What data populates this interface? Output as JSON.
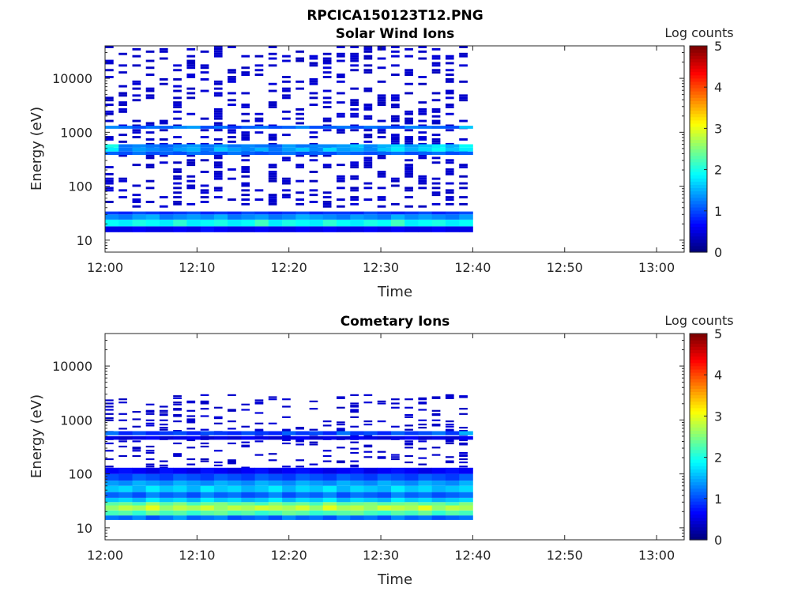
{
  "figure_title": "RPCICA150123T12.PNG",
  "colorbar": {
    "label": "Log counts",
    "ticks": [
      "0",
      "1",
      "2",
      "3",
      "4",
      "5"
    ],
    "range": [
      0,
      5
    ],
    "colormap": "jet"
  },
  "chart_data": [
    {
      "type": "heatmap",
      "title": "Solar Wind Ions",
      "xlabel": "Time",
      "ylabel": "Energy (eV)",
      "x_ticks": [
        "12:00",
        "12:10",
        "12:20",
        "12:30",
        "12:40",
        "12:50",
        "13:00"
      ],
      "y_ticks": [
        "10",
        "100",
        "1000",
        "10000"
      ],
      "y_scale": "log",
      "ylim": [
        6,
        40000
      ],
      "xlim": [
        "12:00",
        "13:03"
      ],
      "data_extent": [
        "12:00",
        "12:40"
      ],
      "bands": [
        {
          "energy_low": 14,
          "energy_high": 18,
          "values": [
            0.5,
            0.5,
            0.6,
            0.5,
            0.5,
            0.6,
            0.5,
            0.7,
            0.6,
            0.5,
            0.5,
            0.6,
            0.5,
            0.5,
            0.6,
            0.5,
            0.6,
            0.5,
            0.5,
            0.6,
            0.5,
            0.6,
            0.5,
            0.5,
            0.6,
            0.5,
            0.5
          ]
        },
        {
          "energy_low": 18,
          "energy_high": 24,
          "values": [
            1.9,
            1.8,
            2.0,
            1.9,
            1.8,
            2.1,
            1.8,
            1.9,
            2.0,
            1.8,
            1.9,
            2.2,
            1.8,
            2.0,
            1.9,
            1.8,
            2.1,
            1.9,
            1.8,
            2.0,
            1.9,
            2.2,
            1.8,
            1.9,
            2.0,
            1.8,
            1.9
          ]
        },
        {
          "energy_low": 24,
          "energy_high": 30,
          "values": [
            1.3,
            1.2,
            1.4,
            1.5,
            1.2,
            1.3,
            1.4,
            1.3,
            1.5,
            1.2,
            1.3,
            1.4,
            1.2,
            1.3,
            1.5,
            1.4,
            1.3,
            1.2,
            1.4,
            1.3,
            1.2,
            1.5,
            1.3,
            1.4,
            1.3,
            1.2,
            1.4
          ]
        },
        {
          "energy_low": 30,
          "energy_high": 34,
          "values": [
            0.9,
            0.8,
            1.0,
            0.9,
            0.8,
            0.9,
            1.0,
            0.8,
            0.9,
            0.8,
            1.0,
            0.9,
            0.8,
            0.9,
            1.0,
            0.8,
            0.9,
            0.9,
            0.8,
            1.0,
            0.9,
            0.8,
            0.9,
            1.0,
            0.8,
            0.9,
            1.0
          ]
        },
        {
          "energy_low": 380,
          "energy_high": 440,
          "values": [
            1.1,
            1.0,
            1.2,
            1.0,
            1.1,
            1.0,
            1.2,
            1.1,
            1.0,
            1.2,
            1.1,
            1.0,
            1.1,
            1.2,
            1.0,
            1.1,
            1.0,
            1.2,
            1.1,
            1.0,
            1.1,
            1.2,
            1.0,
            1.1,
            1.2,
            1.0,
            1.1
          ]
        },
        {
          "energy_low": 440,
          "energy_high": 520,
          "values": [
            1.8,
            1.2,
            1.4,
            1.3,
            1.2,
            1.4,
            1.5,
            1.2,
            1.6,
            1.4,
            1.3,
            1.5,
            1.2,
            1.4,
            1.6,
            1.3,
            1.7,
            1.4,
            1.5,
            1.3,
            1.6,
            1.8,
            1.5,
            1.7,
            1.9,
            1.6,
            1.8
          ]
        },
        {
          "energy_low": 520,
          "energy_high": 600,
          "values": [
            2.0,
            1.2,
            1.3,
            1.2,
            1.1,
            1.3,
            1.4,
            1.2,
            1.4,
            1.2,
            1.3,
            1.2,
            1.1,
            1.4,
            1.2,
            1.3,
            1.3,
            1.4,
            1.6,
            1.3,
            1.5,
            1.7,
            1.4,
            1.6,
            1.8,
            1.5,
            1.9
          ]
        },
        {
          "energy_low": 1160,
          "energy_high": 1320,
          "values": [
            1.3,
            1.2,
            1.0,
            1.2,
            1.1,
            1.3,
            1.4,
            1.0,
            1.2,
            0.9,
            1.1,
            1.2,
            1.0,
            1.1,
            1.3,
            1.0,
            1.1,
            1.2,
            1.0,
            1.2,
            1.1,
            1.0,
            1.3,
            1.2,
            1.1,
            1.0,
            1.6
          ]
        }
      ],
      "sparse_region_energy": [
        40,
        40000
      ],
      "sparse_region_level": 0.3
    },
    {
      "type": "heatmap",
      "title": "Cometary Ions",
      "xlabel": "Time",
      "ylabel": "Energy (eV)",
      "x_ticks": [
        "12:00",
        "12:10",
        "12:20",
        "12:30",
        "12:40",
        "12:50",
        "13:00"
      ],
      "y_ticks": [
        "10",
        "100",
        "1000",
        "10000"
      ],
      "y_scale": "log",
      "ylim": [
        6,
        40000
      ],
      "xlim": [
        "12:00",
        "13:03"
      ],
      "data_extent": [
        "12:00",
        "12:40"
      ],
      "bands": [
        {
          "energy_low": 14,
          "energy_high": 17,
          "values": [
            1.2,
            1.1,
            1.3,
            1.0,
            1.2,
            1.4,
            1.1,
            1.2,
            1.3,
            1.0,
            1.1,
            1.2,
            1.0,
            1.3,
            1.1,
            1.2,
            1.0,
            1.3,
            1.1,
            1.2,
            1.0,
            1.3,
            1.1,
            1.2,
            1.0,
            1.1,
            1.2
          ]
        },
        {
          "energy_low": 17,
          "energy_high": 21,
          "values": [
            2.2,
            2.3,
            2.1,
            2.4,
            2.2,
            2.3,
            2.1,
            2.3,
            2.4,
            2.2,
            2.3,
            2.1,
            2.2,
            2.4,
            2.3,
            2.1,
            2.2,
            2.3,
            2.4,
            2.2,
            2.1,
            2.3,
            2.2,
            2.4,
            2.1,
            2.3,
            2.2
          ]
        },
        {
          "energy_low": 21,
          "energy_high": 26,
          "values": [
            2.6,
            2.8,
            2.7,
            3.0,
            2.6,
            2.8,
            2.7,
            2.9,
            2.6,
            2.8,
            2.7,
            2.9,
            2.8,
            2.7,
            2.9,
            2.6,
            3.0,
            2.7,
            2.8,
            2.6,
            2.9,
            2.8,
            2.7,
            3.0,
            2.6,
            2.8,
            2.7
          ]
        },
        {
          "energy_low": 26,
          "energy_high": 30,
          "values": [
            2.3,
            2.4,
            2.2,
            2.6,
            2.3,
            2.5,
            2.2,
            2.4,
            2.5,
            2.3,
            2.4,
            2.2,
            2.5,
            2.3,
            2.4,
            2.2,
            2.6,
            2.3,
            2.4,
            2.5,
            2.3,
            2.4,
            2.5,
            2.3,
            2.4,
            2.2,
            2.5
          ]
        },
        {
          "energy_low": 30,
          "energy_high": 36,
          "values": [
            1.6,
            1.7,
            1.5,
            1.8,
            1.6,
            1.7,
            1.5,
            1.8,
            1.6,
            1.7,
            1.5,
            1.6,
            1.8,
            1.5,
            1.7,
            1.6,
            1.8,
            1.5,
            1.7,
            1.6,
            1.5,
            1.8,
            1.6,
            1.7,
            1.5,
            1.6,
            1.7
          ]
        },
        {
          "energy_low": 36,
          "energy_high": 46,
          "values": [
            1.1,
            1.2,
            1.0,
            1.3,
            1.1,
            1.2,
            1.0,
            1.3,
            1.1,
            1.2,
            1.0,
            1.1,
            1.3,
            1.0,
            1.2,
            1.1,
            1.3,
            1.0,
            1.2,
            1.1,
            1.0,
            1.3,
            1.1,
            1.2,
            1.0,
            1.1,
            1.2
          ]
        },
        {
          "energy_low": 46,
          "energy_high": 60,
          "values": [
            1.6,
            1.7,
            1.5,
            1.8,
            1.6,
            1.7,
            1.5,
            1.8,
            1.6,
            1.7,
            1.5,
            1.6,
            1.8,
            1.5,
            1.7,
            1.6,
            1.8,
            1.5,
            1.7,
            1.6,
            1.5,
            1.8,
            1.6,
            1.7,
            1.5,
            1.6,
            1.7
          ]
        },
        {
          "energy_low": 60,
          "energy_high": 75,
          "values": [
            1.4,
            1.3,
            1.5,
            1.4,
            1.3,
            1.5,
            1.4,
            1.3,
            1.5,
            1.4,
            1.3,
            1.5,
            1.4,
            1.3,
            1.5,
            1.4,
            1.3,
            1.5,
            1.4,
            1.3,
            1.5,
            1.4,
            1.3,
            1.5,
            1.4,
            1.3,
            1.5
          ]
        },
        {
          "energy_low": 75,
          "energy_high": 100,
          "values": [
            1.0,
            0.9,
            1.1,
            1.0,
            0.9,
            1.1,
            1.0,
            0.9,
            1.1,
            1.0,
            0.9,
            1.1,
            1.0,
            0.9,
            1.1,
            1.0,
            0.9,
            1.1,
            1.0,
            0.9,
            1.1,
            1.0,
            0.9,
            1.1,
            1.0,
            0.9,
            1.1
          ]
        },
        {
          "energy_low": 100,
          "energy_high": 130,
          "values": [
            0.6,
            0.7,
            0.6,
            0.5,
            0.7,
            0.6,
            0.5,
            0.7,
            0.6,
            0.5,
            0.6,
            0.7,
            0.5,
            0.6,
            0.7,
            0.6,
            0.5,
            0.6,
            0.7,
            0.5,
            0.6,
            0.7,
            0.6,
            0.5,
            0.6,
            0.7,
            0.6
          ]
        },
        {
          "energy_low": 430,
          "energy_high": 500,
          "values": [
            0.5,
            0.4,
            0.5,
            0.6,
            0.4,
            0.5,
            0.6,
            0.4,
            0.5,
            0.4,
            0.6,
            0.5,
            0.4,
            0.5,
            0.6,
            0.4,
            0.5,
            0.4,
            0.6,
            0.5,
            0.4,
            0.5,
            0.6,
            0.4,
            0.5,
            0.4,
            0.6
          ]
        },
        {
          "energy_low": 520,
          "energy_high": 620,
          "values": [
            1.2,
            0.8,
            1.0,
            0.8,
            0.9,
            1.0,
            0.8,
            1.0,
            0.9,
            0.8,
            1.0,
            0.9,
            0.8,
            1.1,
            0.9,
            1.0,
            0.8,
            1.2,
            0.9,
            1.0,
            0.8,
            1.1,
            0.9,
            1.0,
            1.2,
            0.9,
            1.5
          ]
        }
      ],
      "sparse_region_energy": [
        130,
        3000
      ],
      "sparse_region_level": 0.3
    }
  ]
}
